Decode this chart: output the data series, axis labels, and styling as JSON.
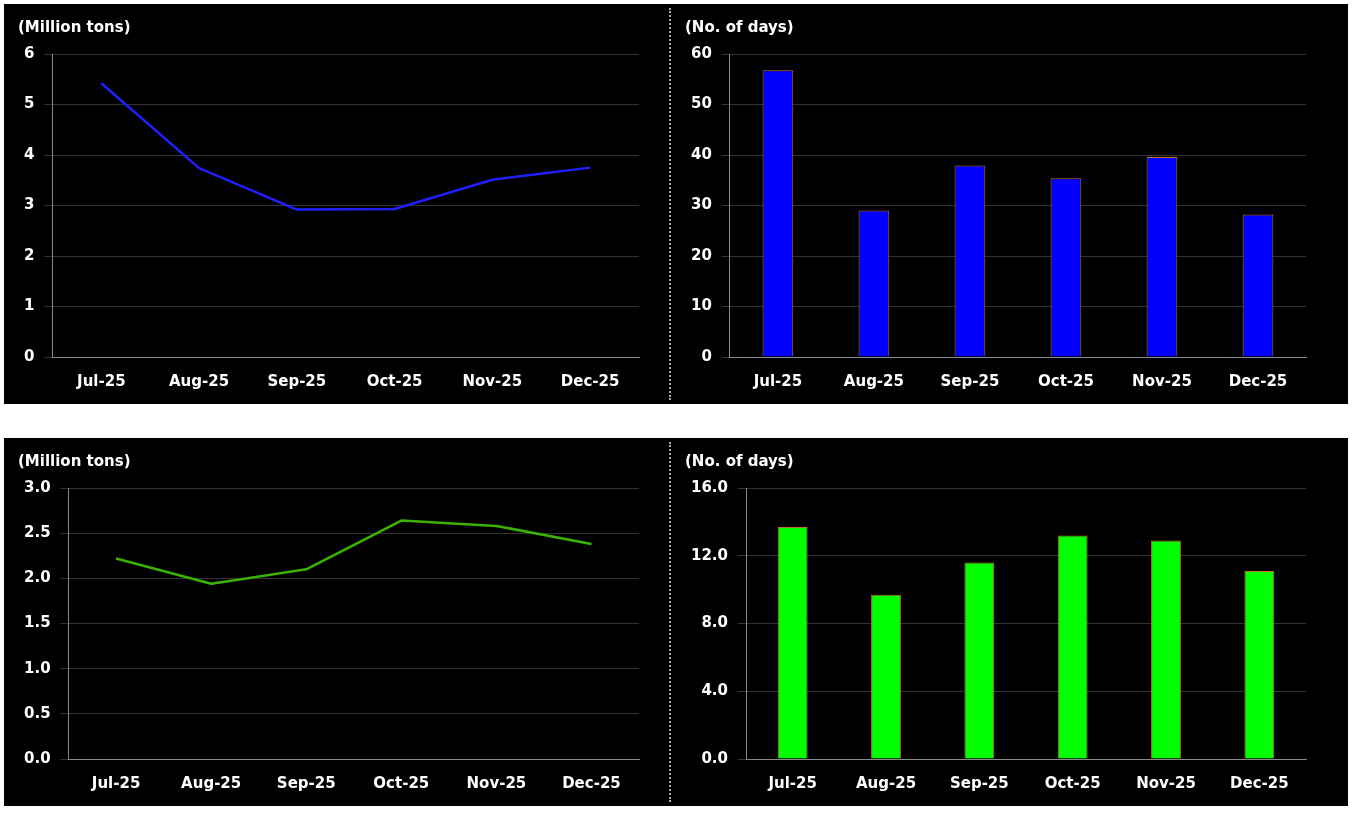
{
  "chart_data": [
    {
      "type": "line",
      "ylabel": "(Million tons)",
      "categories": [
        "Jul-25",
        "Aug-25",
        "Sep-25",
        "Oct-25",
        "Nov-25",
        "Dec-25"
      ],
      "series": [
        {
          "color": "#2020ff",
          "values": [
            5.42,
            3.74,
            2.92,
            2.93,
            3.51,
            3.75
          ]
        }
      ],
      "ylim": [
        0,
        6
      ],
      "yticks": [
        0,
        1,
        2,
        3,
        4,
        5,
        6
      ],
      "grid": "y",
      "legend": false,
      "marker": "none"
    },
    {
      "type": "bar",
      "ylabel": "(No. of days)",
      "categories": [
        "Jul-25",
        "Aug-25",
        "Sep-25",
        "Oct-25",
        "Nov-25",
        "Dec-25"
      ],
      "series": [
        {
          "color": "#0000ff",
          "values": [
            56.8,
            29,
            37.9,
            35.4,
            39.6,
            28.2
          ]
        }
      ],
      "ylim": [
        0,
        60
      ],
      "yticks": [
        0,
        10,
        20,
        30,
        40,
        50,
        60
      ],
      "grid": "y",
      "legend": false
    },
    {
      "type": "line",
      "ylabel": "(Million tons)",
      "categories": [
        "Jul-25",
        "Aug-25",
        "Sep-25",
        "Oct-25",
        "Nov-25",
        "Dec-25"
      ],
      "series": [
        {
          "color": "#3cb300",
          "values": [
            2.22,
            1.94,
            2.1,
            2.64,
            2.58,
            2.38
          ]
        }
      ],
      "ylim": [
        0,
        3
      ],
      "yticks": [
        {
          "value": 0,
          "label": "0.0"
        },
        {
          "value": 0.5,
          "label": "0.5"
        },
        {
          "value": 1,
          "label": "1.0"
        },
        {
          "value": 1.5,
          "label": "1.5"
        },
        {
          "value": 2,
          "label": "2.0"
        },
        {
          "value": 2.5,
          "label": "2.5"
        },
        {
          "value": 3,
          "label": "3.0"
        }
      ],
      "grid": "y",
      "legend": false,
      "marker": "none"
    },
    {
      "type": "bar",
      "ylabel": "(No. of days)",
      "categories": [
        "Jul-25",
        "Aug-25",
        "Sep-25",
        "Oct-25",
        "Nov-25",
        "Dec-25"
      ],
      "series": [
        {
          "color": "#00ff00",
          "values": [
            13.7,
            9.7,
            11.6,
            13.2,
            12.9,
            11.1
          ]
        }
      ],
      "ylim": [
        0,
        16
      ],
      "yticks": [
        {
          "value": 0,
          "label": "0.0"
        },
        {
          "value": 4,
          "label": "4.0"
        },
        {
          "value": 8,
          "label": "8.0"
        },
        {
          "value": 12,
          "label": "12.0"
        },
        {
          "value": 16,
          "label": "16.0"
        }
      ],
      "grid": "y",
      "legend": false
    }
  ]
}
